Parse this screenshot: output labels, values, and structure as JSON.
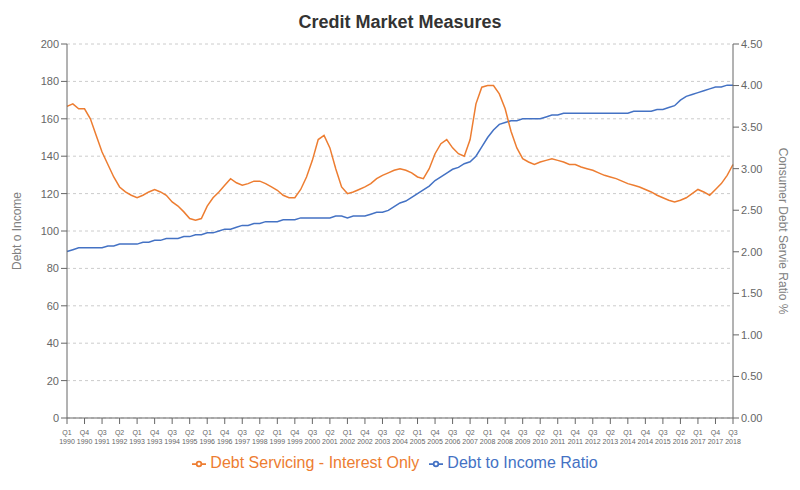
{
  "chart_data": {
    "type": "line",
    "title": "Credit Market Measures",
    "y_label": "Debt o Income",
    "y2_label": "Consumer Debt Servie Ratio %",
    "categories": [
      "Q1\n1990",
      null,
      null,
      "Q4\n1990",
      null,
      null,
      "Q3\n1991",
      null,
      null,
      "Q2\n1992",
      null,
      null,
      "Q1\n1993",
      null,
      null,
      "Q4\n1993",
      null,
      null,
      "Q3\n1994",
      null,
      null,
      "Q2\n1995",
      null,
      null,
      "Q1\n1996",
      null,
      null,
      "Q4\n1996",
      null,
      null,
      "Q3\n1997",
      null,
      null,
      "Q2\n1998",
      null,
      null,
      "Q1\n1999",
      null,
      null,
      "Q4\n1999",
      null,
      null,
      "Q3\n2000",
      null,
      null,
      "Q2\n2001",
      null,
      null,
      "Q1\n2002",
      null,
      null,
      "Q4\n2002",
      null,
      null,
      "Q3\n2003",
      null,
      null,
      "Q2\n2004",
      null,
      null,
      "Q1\n2005",
      null,
      null,
      "Q4\n2005",
      null,
      null,
      "Q3\n2006",
      null,
      null,
      "Q2\n2007",
      null,
      null,
      "Q1\n2008",
      null,
      null,
      "Q4\n2008",
      null,
      null,
      "Q3\n2009",
      null,
      null,
      "Q2\n2010",
      null,
      null,
      "Q1\n2011",
      null,
      null,
      "Q4\n2011",
      null,
      null,
      "Q3\n2012",
      null,
      null,
      "Q2\n2013",
      null,
      null,
      "Q1\n2014",
      null,
      null,
      "Q4\n2014",
      null,
      null,
      "Q3\n2015",
      null,
      null,
      "Q2\n2016",
      null,
      null,
      "Q1\n2017",
      null,
      null,
      "Q4\n2017",
      null,
      null,
      "Q3\n2018"
    ],
    "series": [
      {
        "name": "Debt to Income Ratio",
        "color": "#4472C4",
        "values": [
          89,
          90,
          91,
          91,
          91,
          91,
          91,
          92,
          92,
          93,
          93,
          93,
          93,
          94,
          94,
          95,
          95,
          96,
          96,
          96,
          97,
          97,
          98,
          98,
          99,
          99,
          100,
          101,
          101,
          102,
          103,
          103,
          104,
          104,
          105,
          105,
          105,
          106,
          106,
          106,
          107,
          107,
          107,
          107,
          107,
          107,
          108,
          108,
          107,
          108,
          108,
          108,
          109,
          110,
          110,
          111,
          113,
          115,
          116,
          118,
          120,
          122,
          124,
          127,
          129,
          131,
          133,
          134,
          136,
          137,
          140,
          145,
          150,
          154,
          157,
          158,
          159,
          159,
          160,
          160,
          160,
          160,
          161,
          162,
          162,
          163,
          163,
          163,
          163,
          163,
          163,
          163,
          163,
          163,
          163,
          163,
          163,
          164,
          164,
          164,
          164,
          165,
          165,
          166,
          167,
          170,
          172,
          173,
          174,
          175,
          176,
          177,
          177,
          178,
          178
        ]
      },
      {
        "name": "Debt Servicing - Interest Only",
        "color": "#ED7D31",
        "axis": "y2",
        "values": [
          3.75,
          3.78,
          3.72,
          3.72,
          3.6,
          3.4,
          3.2,
          3.05,
          2.9,
          2.78,
          2.72,
          2.68,
          2.65,
          2.68,
          2.72,
          2.75,
          2.72,
          2.68,
          2.6,
          2.55,
          2.48,
          2.4,
          2.38,
          2.4,
          2.55,
          2.65,
          2.72,
          2.8,
          2.88,
          2.83,
          2.8,
          2.82,
          2.85,
          2.85,
          2.82,
          2.78,
          2.74,
          2.68,
          2.65,
          2.65,
          2.75,
          2.9,
          3.1,
          3.35,
          3.4,
          3.25,
          3.0,
          2.78,
          2.7,
          2.72,
          2.75,
          2.78,
          2.82,
          2.88,
          2.92,
          2.95,
          2.98,
          3.0,
          2.98,
          2.95,
          2.9,
          2.88,
          3.0,
          3.18,
          3.3,
          3.35,
          3.25,
          3.18,
          3.15,
          3.35,
          3.78,
          3.98,
          4.0,
          4.0,
          3.9,
          3.72,
          3.45,
          3.25,
          3.12,
          3.08,
          3.05,
          3.08,
          3.1,
          3.12,
          3.1,
          3.08,
          3.05,
          3.05,
          3.02,
          3.0,
          2.98,
          2.95,
          2.92,
          2.9,
          2.88,
          2.85,
          2.82,
          2.8,
          2.78,
          2.75,
          2.72,
          2.68,
          2.65,
          2.62,
          2.6,
          2.62,
          2.65,
          2.7,
          2.75,
          2.72,
          2.68,
          2.75,
          2.82,
          2.92,
          3.05
        ]
      }
    ],
    "ylim": [
      0,
      200
    ],
    "yticks": [
      0,
      20,
      40,
      60,
      80,
      100,
      120,
      140,
      160,
      180,
      200
    ],
    "y2lim": [
      0.0,
      4.5
    ],
    "y2ticks": [
      {
        "value": 0.0,
        "label": "0.00"
      },
      {
        "value": 0.5,
        "label": "0.50"
      },
      {
        "value": 1.0,
        "label": "1.00"
      },
      {
        "value": 1.5,
        "label": "1.50"
      },
      {
        "value": 2.0,
        "label": "2.00"
      },
      {
        "value": 2.5,
        "label": "2.50"
      },
      {
        "value": 3.0,
        "label": "3.00"
      },
      {
        "value": 3.5,
        "label": "3.50"
      },
      {
        "value": 4.0,
        "label": "4.00"
      },
      {
        "value": 4.5,
        "label": "4.50"
      }
    ],
    "grid": true,
    "legend": "bottom"
  }
}
